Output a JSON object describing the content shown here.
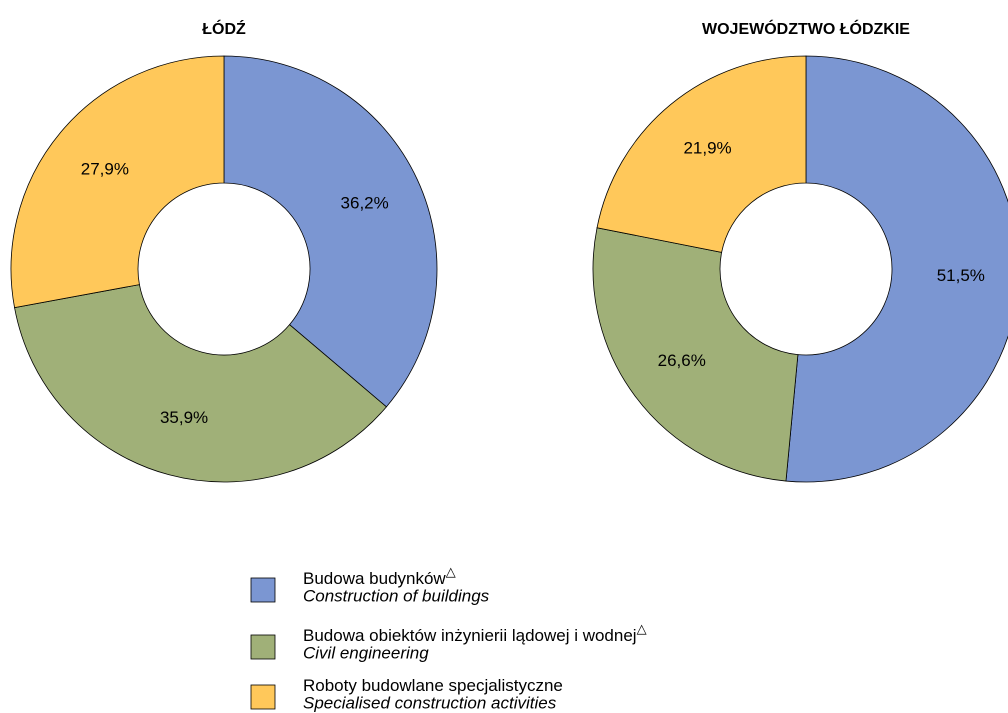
{
  "chart_data": [
    {
      "type": "pie",
      "title": "ŁÓDŹ",
      "donut": true,
      "values": [
        36.2,
        35.9,
        27.9
      ],
      "value_labels": [
        "36,2%",
        "35,9%",
        "27,9%"
      ],
      "colors": [
        "#7b96d2",
        "#a0b078",
        "#ffc85a"
      ]
    },
    {
      "type": "pie",
      "title": "WOJEWÓDZTWO ŁÓDZKIE",
      "donut": true,
      "values": [
        51.5,
        26.6,
        21.9
      ],
      "value_labels": [
        "51,5%",
        "26,6%",
        "21,9%"
      ],
      "colors": [
        "#7b96d2",
        "#a0b078",
        "#ffc85a"
      ]
    }
  ],
  "legend": [
    {
      "label": "Budowa budynków",
      "mark": "△",
      "translation": "Construction of buildings"
    },
    {
      "label": "Budowa obiektów inżynierii lądowej i wodnej",
      "mark": "△",
      "translation": "Civil engineering"
    },
    {
      "label": "Roboty budowlane specjalistyczne",
      "translation": "Specialised construction activities"
    }
  ]
}
